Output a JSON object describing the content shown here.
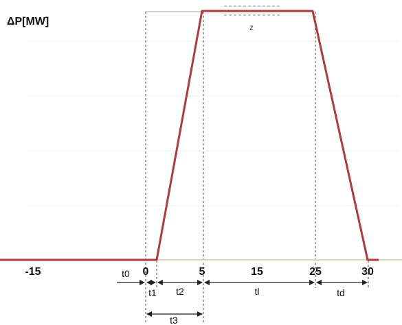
{
  "y_axis_label": "ΔP[MW]",
  "x_ticks": [
    "-15",
    "0",
    "5",
    "15",
    "25",
    "30"
  ],
  "profile": {
    "time": [
      -15,
      0,
      0.1,
      5,
      25,
      30,
      31
    ],
    "power": [
      0,
      0,
      0,
      1,
      1,
      0,
      0
    ],
    "color": "#b03a3a"
  },
  "intervals": {
    "t0": "t0",
    "t1": "t1",
    "t2": "t2",
    "tl": "tl",
    "td": "td",
    "t3": "t3"
  },
  "plateau_label": "z"
}
